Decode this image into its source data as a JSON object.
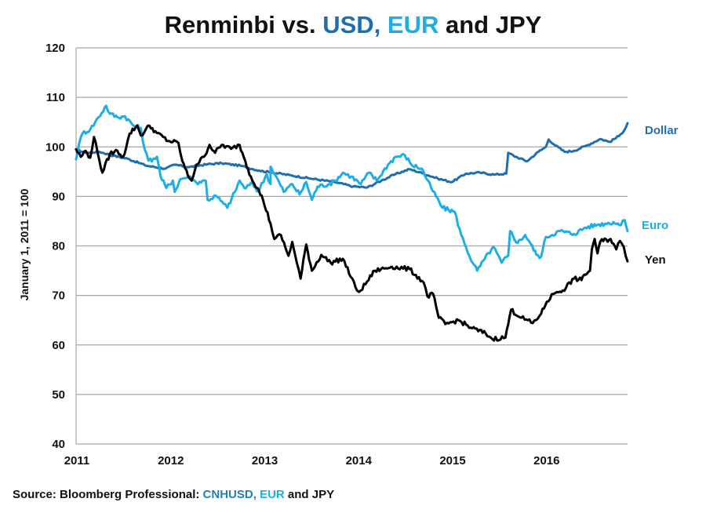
{
  "title": {
    "part1": "Renminbi vs. ",
    "usd": "USD,",
    "space1": " ",
    "eur": "EUR",
    "part2": " and JPY"
  },
  "source": {
    "part1": "Source: Bloomberg Professional:  ",
    "usd": "CNHUSD,",
    "space1": " ",
    "eur": "EUR",
    "part2": " and JPY"
  },
  "colors": {
    "dollar": "#1f6eb0",
    "euro": "#1eaee6",
    "yen": "#000000",
    "grid": "#a6a6a6"
  },
  "chart_data": {
    "type": "line",
    "title": "Renminbi vs. USD, EUR and JPY",
    "xlabel": "",
    "ylabel": "January 1, 2011 = 100",
    "xlim": [
      2011,
      2016.87
    ],
    "ylim": [
      40,
      120
    ],
    "yticks": [
      "40",
      "50",
      "60",
      "70",
      "80",
      "90",
      "100",
      "110",
      "120"
    ],
    "ytick_values": [
      40,
      50,
      60,
      70,
      80,
      90,
      100,
      110,
      120
    ],
    "xticks": [
      "2011",
      "2012",
      "2013",
      "2014",
      "2015",
      "2016"
    ],
    "xtick_values": [
      2011,
      2012,
      2013,
      2014,
      2015,
      2016
    ],
    "grid": "horizontal",
    "legend": "inline-right",
    "series": [
      {
        "name": "Dollar",
        "color": "#1f6eb0",
        "points": [
          [
            2011.0,
            99.5
          ],
          [
            2011.1,
            98.8
          ],
          [
            2011.25,
            99.0
          ],
          [
            2011.4,
            98.2
          ],
          [
            2011.55,
            97.6
          ],
          [
            2011.75,
            96.2
          ],
          [
            2011.95,
            95.6
          ],
          [
            2012.05,
            96.4
          ],
          [
            2012.2,
            95.9
          ],
          [
            2012.4,
            96.5
          ],
          [
            2012.55,
            96.7
          ],
          [
            2012.75,
            96.2
          ],
          [
            2012.95,
            95.2
          ],
          [
            2013.1,
            94.8
          ],
          [
            2013.3,
            94.2
          ],
          [
            2013.5,
            93.6
          ],
          [
            2013.75,
            92.9
          ],
          [
            2013.95,
            92.0
          ],
          [
            2014.1,
            91.8
          ],
          [
            2014.25,
            93.2
          ],
          [
            2014.4,
            94.5
          ],
          [
            2014.55,
            95.5
          ],
          [
            2014.7,
            94.6
          ],
          [
            2014.85,
            93.6
          ],
          [
            2015.0,
            92.9
          ],
          [
            2015.15,
            94.6
          ],
          [
            2015.3,
            94.8
          ],
          [
            2015.45,
            94.4
          ],
          [
            2015.58,
            94.6
          ],
          [
            2015.6,
            98.8
          ],
          [
            2015.68,
            98.0
          ],
          [
            2015.8,
            97.1
          ],
          [
            2015.92,
            99.0
          ],
          [
            2016.0,
            100.0
          ],
          [
            2016.03,
            101.5
          ],
          [
            2016.1,
            100.3
          ],
          [
            2016.2,
            99.0
          ],
          [
            2016.3,
            99.2
          ],
          [
            2016.45,
            100.4
          ],
          [
            2016.58,
            101.6
          ],
          [
            2016.68,
            101.0
          ],
          [
            2016.78,
            102.2
          ],
          [
            2016.84,
            103.5
          ],
          [
            2016.87,
            104.8
          ]
        ]
      },
      {
        "name": "Euro",
        "color": "#1eaee6",
        "points": [
          [
            2011.0,
            97.5
          ],
          [
            2011.03,
            100.5
          ],
          [
            2011.07,
            102.8
          ],
          [
            2011.15,
            103.5
          ],
          [
            2011.24,
            106.0
          ],
          [
            2011.32,
            108.3
          ],
          [
            2011.36,
            106.7
          ],
          [
            2011.44,
            106.0
          ],
          [
            2011.52,
            106.2
          ],
          [
            2011.61,
            104.3
          ],
          [
            2011.69,
            103.8
          ],
          [
            2011.73,
            99.5
          ],
          [
            2011.77,
            97.2
          ],
          [
            2011.86,
            98.0
          ],
          [
            2011.9,
            94.0
          ],
          [
            2011.96,
            91.7
          ],
          [
            2012.03,
            93.2
          ],
          [
            2012.05,
            90.9
          ],
          [
            2012.11,
            93.5
          ],
          [
            2012.2,
            94.0
          ],
          [
            2012.28,
            92.8
          ],
          [
            2012.38,
            93.2
          ],
          [
            2012.4,
            89.3
          ],
          [
            2012.49,
            90.1
          ],
          [
            2012.57,
            88.5
          ],
          [
            2012.61,
            87.7
          ],
          [
            2012.69,
            90.9
          ],
          [
            2012.74,
            93.2
          ],
          [
            2012.79,
            91.7
          ],
          [
            2012.88,
            92.5
          ],
          [
            2012.94,
            91.0
          ],
          [
            2013.03,
            94.5
          ],
          [
            2013.07,
            92.5
          ],
          [
            2013.07,
            96.0
          ],
          [
            2013.13,
            94.0
          ],
          [
            2013.21,
            90.9
          ],
          [
            2013.3,
            92.5
          ],
          [
            2013.38,
            90.4
          ],
          [
            2013.45,
            92.9
          ],
          [
            2013.51,
            89.3
          ],
          [
            2013.57,
            92.0
          ],
          [
            2013.7,
            92.5
          ],
          [
            2013.76,
            93.2
          ],
          [
            2013.84,
            94.8
          ],
          [
            2013.93,
            94.0
          ],
          [
            2014.03,
            92.5
          ],
          [
            2014.12,
            94.8
          ],
          [
            2014.2,
            93.2
          ],
          [
            2014.32,
            96.4
          ],
          [
            2014.4,
            98.0
          ],
          [
            2014.5,
            98.3
          ],
          [
            2014.57,
            96.4
          ],
          [
            2014.68,
            95.6
          ],
          [
            2014.78,
            91.7
          ],
          [
            2014.9,
            87.7
          ],
          [
            2015.03,
            86.9
          ],
          [
            2015.1,
            82.2
          ],
          [
            2015.15,
            79.8
          ],
          [
            2015.22,
            76.6
          ],
          [
            2015.27,
            75.0
          ],
          [
            2015.35,
            77.4
          ],
          [
            2015.44,
            79.8
          ],
          [
            2015.53,
            76.6
          ],
          [
            2015.6,
            78.0
          ],
          [
            2015.62,
            83.0
          ],
          [
            2015.7,
            80.6
          ],
          [
            2015.78,
            82.2
          ],
          [
            2015.84,
            80.4
          ],
          [
            2015.9,
            78.2
          ],
          [
            2015.95,
            77.8
          ],
          [
            2016.0,
            81.8
          ],
          [
            2016.15,
            83.0
          ],
          [
            2016.3,
            82.4
          ],
          [
            2016.42,
            83.7
          ],
          [
            2016.55,
            84.3
          ],
          [
            2016.63,
            84.5
          ],
          [
            2016.72,
            84.8
          ],
          [
            2016.8,
            84.2
          ],
          [
            2016.84,
            85.2
          ],
          [
            2016.87,
            83.0
          ]
        ]
      },
      {
        "name": "Yen",
        "color": "#000000",
        "points": [
          [
            2011.0,
            99.5
          ],
          [
            2011.05,
            98.0
          ],
          [
            2011.1,
            99.2
          ],
          [
            2011.15,
            97.8
          ],
          [
            2011.19,
            102.0
          ],
          [
            2011.23,
            98.8
          ],
          [
            2011.28,
            94.8
          ],
          [
            2011.36,
            98.6
          ],
          [
            2011.44,
            99.2
          ],
          [
            2011.5,
            98.0
          ],
          [
            2011.53,
            99.6
          ],
          [
            2011.57,
            102.7
          ],
          [
            2011.65,
            104.3
          ],
          [
            2011.69,
            102.3
          ],
          [
            2011.78,
            104.3
          ],
          [
            2011.86,
            102.8
          ],
          [
            2011.98,
            101.2
          ],
          [
            2012.09,
            100.8
          ],
          [
            2012.13,
            97.2
          ],
          [
            2012.19,
            94.2
          ],
          [
            2012.23,
            93.2
          ],
          [
            2012.28,
            96.4
          ],
          [
            2012.36,
            98.0
          ],
          [
            2012.42,
            100.4
          ],
          [
            2012.48,
            98.8
          ],
          [
            2012.55,
            100.4
          ],
          [
            2012.65,
            99.6
          ],
          [
            2012.74,
            100.4
          ],
          [
            2012.8,
            97.2
          ],
          [
            2012.86,
            94.0
          ],
          [
            2012.93,
            91.7
          ],
          [
            2012.99,
            89.3
          ],
          [
            2013.07,
            84.5
          ],
          [
            2013.11,
            81.4
          ],
          [
            2013.18,
            82.2
          ],
          [
            2013.26,
            78.0
          ],
          [
            2013.3,
            80.8
          ],
          [
            2013.35,
            76.6
          ],
          [
            2013.39,
            73.4
          ],
          [
            2013.45,
            80.3
          ],
          [
            2013.51,
            75.0
          ],
          [
            2013.61,
            78.2
          ],
          [
            2013.71,
            76.6
          ],
          [
            2013.84,
            77.4
          ],
          [
            2013.99,
            71.0
          ],
          [
            2014.03,
            71.0
          ],
          [
            2014.18,
            75.0
          ],
          [
            2014.36,
            75.8
          ],
          [
            2014.55,
            75.3
          ],
          [
            2014.7,
            72.6
          ],
          [
            2014.74,
            69.8
          ],
          [
            2014.8,
            70.3
          ],
          [
            2014.86,
            65.5
          ],
          [
            2014.93,
            64.2
          ],
          [
            2015.07,
            65.0
          ],
          [
            2015.2,
            63.5
          ],
          [
            2015.36,
            62.3
          ],
          [
            2015.43,
            61.2
          ],
          [
            2015.57,
            61.5
          ],
          [
            2015.63,
            67.1
          ],
          [
            2015.74,
            65.5
          ],
          [
            2015.86,
            64.4
          ],
          [
            2015.95,
            66.3
          ],
          [
            2016.01,
            68.7
          ],
          [
            2016.08,
            70.3
          ],
          [
            2016.12,
            70.7
          ],
          [
            2016.18,
            71.0
          ],
          [
            2016.3,
            73.4
          ],
          [
            2016.38,
            73.1
          ],
          [
            2016.41,
            74.2
          ],
          [
            2016.47,
            75.0
          ],
          [
            2016.49,
            79.3
          ],
          [
            2016.52,
            81.4
          ],
          [
            2016.55,
            78.5
          ],
          [
            2016.58,
            80.9
          ],
          [
            2016.69,
            81.4
          ],
          [
            2016.75,
            79.3
          ],
          [
            2016.79,
            81.0
          ],
          [
            2016.83,
            79.8
          ],
          [
            2016.87,
            76.9
          ]
        ]
      }
    ]
  }
}
